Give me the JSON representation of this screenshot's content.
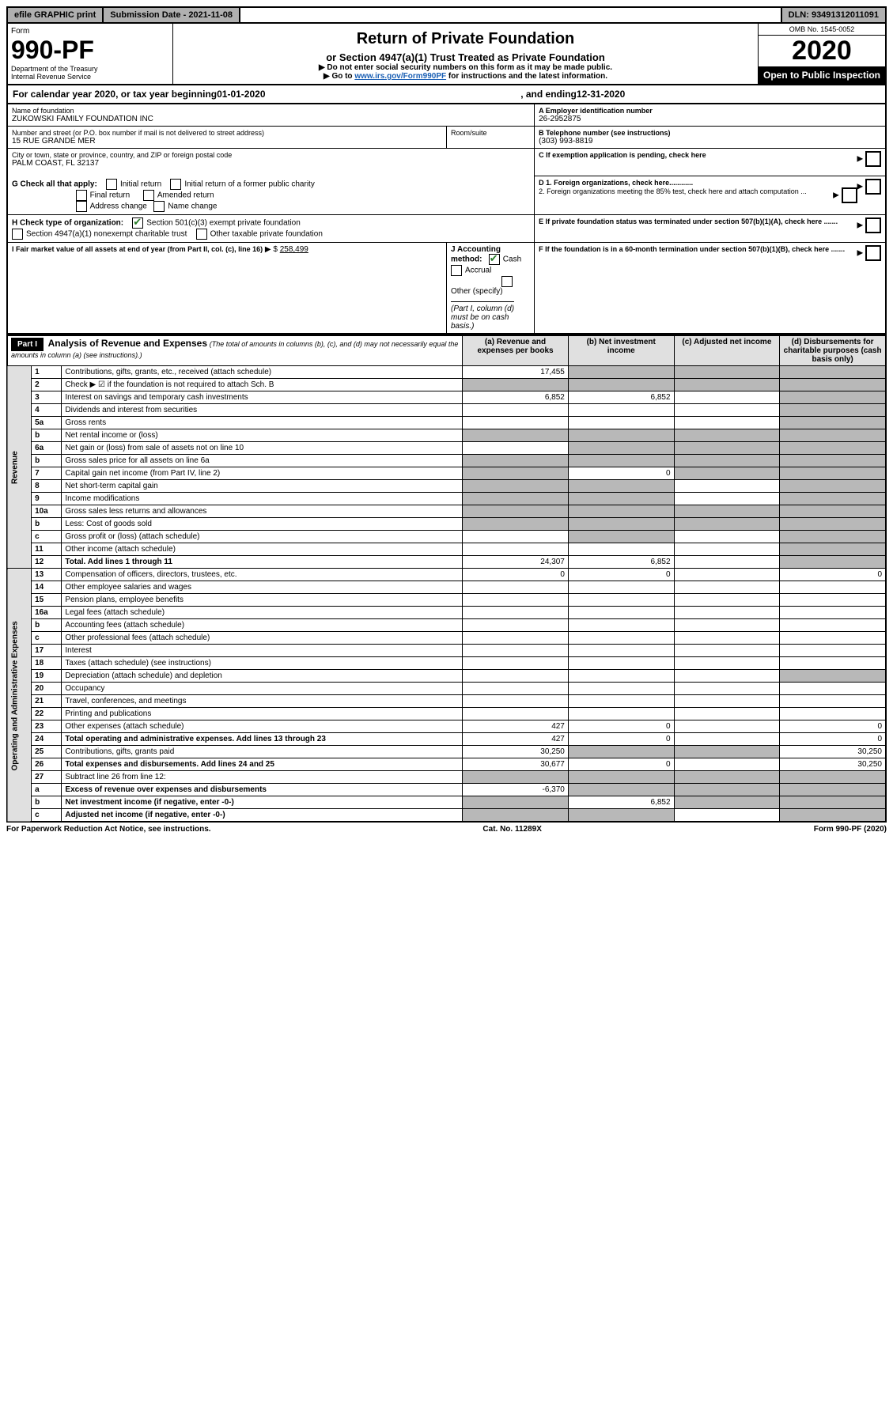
{
  "topbar": {
    "efile": "efile GRAPHIC print",
    "subdate_label": "Submission Date - 2021-11-08",
    "dln": "DLN: 93491312011091"
  },
  "header": {
    "form_label": "Form",
    "form_number": "990-PF",
    "dept": "Department of the Treasury",
    "irs": "Internal Revenue Service",
    "title": "Return of Private Foundation",
    "subtitle": "or Section 4947(a)(1) Trust Treated as Private Foundation",
    "instr1": "▶ Do not enter social security numbers on this form as it may be made public.",
    "instr2_pre": "▶ Go to ",
    "instr2_link": "www.irs.gov/Form990PF",
    "instr2_post": " for instructions and the latest information.",
    "omb": "OMB No. 1545-0052",
    "year": "2020",
    "open": "Open to Public Inspection"
  },
  "calendar": {
    "pre": "For calendar year 2020, or tax year beginning ",
    "begin": "01-01-2020",
    "mid": " , and ending ",
    "end": "12-31-2020"
  },
  "entity": {
    "name_label": "Name of foundation",
    "name": "ZUKOWSKI FAMILY FOUNDATION INC",
    "addr_label": "Number and street (or P.O. box number if mail is not delivered to street address)",
    "addr": "15 RUE GRANDE MER",
    "room_label": "Room/suite",
    "city_label": "City or town, state or province, country, and ZIP or foreign postal code",
    "city": "PALM COAST, FL  32137",
    "ein_label": "A Employer identification number",
    "ein": "26-2952875",
    "phone_label": "B Telephone number (see instructions)",
    "phone": "(303) 993-8819",
    "c_label": "C If exemption application is pending, check here",
    "d1_label": "D 1. Foreign organizations, check here............",
    "d2_label": "2. Foreign organizations meeting the 85% test, check here and attach computation ...",
    "e_label": "E If private foundation status was terminated under section 507(b)(1)(A), check here .......",
    "f_label": "F If the foundation is in a 60-month termination under section 507(b)(1)(B), check here .......",
    "g_label": "G Check all that apply:",
    "g_initial": "Initial return",
    "g_initial_former": "Initial return of a former public charity",
    "g_final": "Final return",
    "g_amended": "Amended return",
    "g_address": "Address change",
    "g_name": "Name change",
    "h_label": "H Check type of organization:",
    "h_501c3": "Section 501(c)(3) exempt private foundation",
    "h_4947": "Section 4947(a)(1) nonexempt charitable trust",
    "h_other": "Other taxable private foundation",
    "i_label": "I Fair market value of all assets at end of year (from Part II, col. (c), line 16)",
    "i_value": "258,499",
    "j_label": "J Accounting method:",
    "j_cash": "Cash",
    "j_accrual": "Accrual",
    "j_other": "Other (specify)",
    "j_note": "(Part I, column (d) must be on cash basis.)"
  },
  "part1": {
    "label": "Part I",
    "title": "Analysis of Revenue and Expenses",
    "note": "(The total of amounts in columns (b), (c), and (d) may not necessarily equal the amounts in column (a) (see instructions).)",
    "col_a": "(a) Revenue and expenses per books",
    "col_b": "(b) Net investment income",
    "col_c": "(c) Adjusted net income",
    "col_d": "(d) Disbursements for charitable purposes (cash basis only)"
  },
  "sections": {
    "revenue": "Revenue",
    "opadmin": "Operating and Administrative Expenses"
  },
  "rows": [
    {
      "n": "1",
      "desc": "Contributions, gifts, grants, etc., received (attach schedule)",
      "a": "17,455",
      "b": "",
      "c": "",
      "d": "",
      "shade_b": true,
      "shade_c": true,
      "shade_d": true
    },
    {
      "n": "2",
      "desc": "Check ▶ ☑ if the foundation is not required to attach Sch. B",
      "a": "",
      "b": "",
      "c": "",
      "d": "",
      "shade_a": true,
      "shade_b": true,
      "shade_c": true,
      "shade_d": true
    },
    {
      "n": "3",
      "desc": "Interest on savings and temporary cash investments",
      "a": "6,852",
      "b": "6,852",
      "c": "",
      "d": "",
      "shade_d": true
    },
    {
      "n": "4",
      "desc": "Dividends and interest from securities",
      "a": "",
      "b": "",
      "c": "",
      "d": "",
      "shade_d": true
    },
    {
      "n": "5a",
      "desc": "Gross rents",
      "a": "",
      "b": "",
      "c": "",
      "d": "",
      "shade_d": true
    },
    {
      "n": "b",
      "desc": "Net rental income or (loss)",
      "a": "",
      "b": "",
      "c": "",
      "d": "",
      "shade_a": true,
      "shade_b": true,
      "shade_c": true,
      "shade_d": true
    },
    {
      "n": "6a",
      "desc": "Net gain or (loss) from sale of assets not on line 10",
      "a": "",
      "b": "",
      "c": "",
      "d": "",
      "shade_b": true,
      "shade_c": true,
      "shade_d": true
    },
    {
      "n": "b",
      "desc": "Gross sales price for all assets on line 6a",
      "a": "",
      "b": "",
      "c": "",
      "d": "",
      "shade_a": true,
      "shade_b": true,
      "shade_c": true,
      "shade_d": true
    },
    {
      "n": "7",
      "desc": "Capital gain net income (from Part IV, line 2)",
      "a": "",
      "b": "0",
      "c": "",
      "d": "",
      "shade_a": true,
      "shade_c": true,
      "shade_d": true
    },
    {
      "n": "8",
      "desc": "Net short-term capital gain",
      "a": "",
      "b": "",
      "c": "",
      "d": "",
      "shade_a": true,
      "shade_b": true,
      "shade_d": true
    },
    {
      "n": "9",
      "desc": "Income modifications",
      "a": "",
      "b": "",
      "c": "",
      "d": "",
      "shade_a": true,
      "shade_b": true,
      "shade_d": true
    },
    {
      "n": "10a",
      "desc": "Gross sales less returns and allowances",
      "a": "",
      "b": "",
      "c": "",
      "d": "",
      "shade_a": true,
      "shade_b": true,
      "shade_c": true,
      "shade_d": true
    },
    {
      "n": "b",
      "desc": "Less: Cost of goods sold",
      "a": "",
      "b": "",
      "c": "",
      "d": "",
      "shade_a": true,
      "shade_b": true,
      "shade_c": true,
      "shade_d": true
    },
    {
      "n": "c",
      "desc": "Gross profit or (loss) (attach schedule)",
      "a": "",
      "b": "",
      "c": "",
      "d": "",
      "shade_b": true,
      "shade_d": true
    },
    {
      "n": "11",
      "desc": "Other income (attach schedule)",
      "a": "",
      "b": "",
      "c": "",
      "d": "",
      "shade_d": true
    },
    {
      "n": "12",
      "desc": "Total. Add lines 1 through 11",
      "a": "24,307",
      "b": "6,852",
      "c": "",
      "d": "",
      "bold": true,
      "shade_d": true
    },
    {
      "n": "13",
      "desc": "Compensation of officers, directors, trustees, etc.",
      "a": "0",
      "b": "0",
      "c": "",
      "d": "0"
    },
    {
      "n": "14",
      "desc": "Other employee salaries and wages",
      "a": "",
      "b": "",
      "c": "",
      "d": ""
    },
    {
      "n": "15",
      "desc": "Pension plans, employee benefits",
      "a": "",
      "b": "",
      "c": "",
      "d": ""
    },
    {
      "n": "16a",
      "desc": "Legal fees (attach schedule)",
      "a": "",
      "b": "",
      "c": "",
      "d": ""
    },
    {
      "n": "b",
      "desc": "Accounting fees (attach schedule)",
      "a": "",
      "b": "",
      "c": "",
      "d": ""
    },
    {
      "n": "c",
      "desc": "Other professional fees (attach schedule)",
      "a": "",
      "b": "",
      "c": "",
      "d": ""
    },
    {
      "n": "17",
      "desc": "Interest",
      "a": "",
      "b": "",
      "c": "",
      "d": ""
    },
    {
      "n": "18",
      "desc": "Taxes (attach schedule) (see instructions)",
      "a": "",
      "b": "",
      "c": "",
      "d": ""
    },
    {
      "n": "19",
      "desc": "Depreciation (attach schedule) and depletion",
      "a": "",
      "b": "",
      "c": "",
      "d": "",
      "shade_d": true
    },
    {
      "n": "20",
      "desc": "Occupancy",
      "a": "",
      "b": "",
      "c": "",
      "d": ""
    },
    {
      "n": "21",
      "desc": "Travel, conferences, and meetings",
      "a": "",
      "b": "",
      "c": "",
      "d": ""
    },
    {
      "n": "22",
      "desc": "Printing and publications",
      "a": "",
      "b": "",
      "c": "",
      "d": ""
    },
    {
      "n": "23",
      "desc": "Other expenses (attach schedule)",
      "a": "427",
      "b": "0",
      "c": "",
      "d": "0"
    },
    {
      "n": "24",
      "desc": "Total operating and administrative expenses. Add lines 13 through 23",
      "a": "427",
      "b": "0",
      "c": "",
      "d": "0",
      "bold": true
    },
    {
      "n": "25",
      "desc": "Contributions, gifts, grants paid",
      "a": "30,250",
      "b": "",
      "c": "",
      "d": "30,250",
      "shade_b": true,
      "shade_c": true
    },
    {
      "n": "26",
      "desc": "Total expenses and disbursements. Add lines 24 and 25",
      "a": "30,677",
      "b": "0",
      "c": "",
      "d": "30,250",
      "bold": true
    },
    {
      "n": "27",
      "desc": "Subtract line 26 from line 12:",
      "a": "",
      "b": "",
      "c": "",
      "d": "",
      "shade_a": true,
      "shade_b": true,
      "shade_c": true,
      "shade_d": true
    },
    {
      "n": "a",
      "desc": "Excess of revenue over expenses and disbursements",
      "a": "-6,370",
      "b": "",
      "c": "",
      "d": "",
      "bold": true,
      "shade_b": true,
      "shade_c": true,
      "shade_d": true
    },
    {
      "n": "b",
      "desc": "Net investment income (if negative, enter -0-)",
      "a": "",
      "b": "6,852",
      "c": "",
      "d": "",
      "bold": true,
      "shade_a": true,
      "shade_c": true,
      "shade_d": true
    },
    {
      "n": "c",
      "desc": "Adjusted net income (if negative, enter -0-)",
      "a": "",
      "b": "",
      "c": "",
      "d": "",
      "bold": true,
      "shade_a": true,
      "shade_b": true,
      "shade_d": true
    }
  ],
  "footer": {
    "left": "For Paperwork Reduction Act Notice, see instructions.",
    "mid": "Cat. No. 11289X",
    "right": "Form 990-PF (2020)"
  },
  "colors": {
    "gray_header": "#b0b0b0",
    "shaded_cell": "#b8b8b8",
    "link": "#1a5fb4",
    "check_green": "#2a7d2a"
  }
}
